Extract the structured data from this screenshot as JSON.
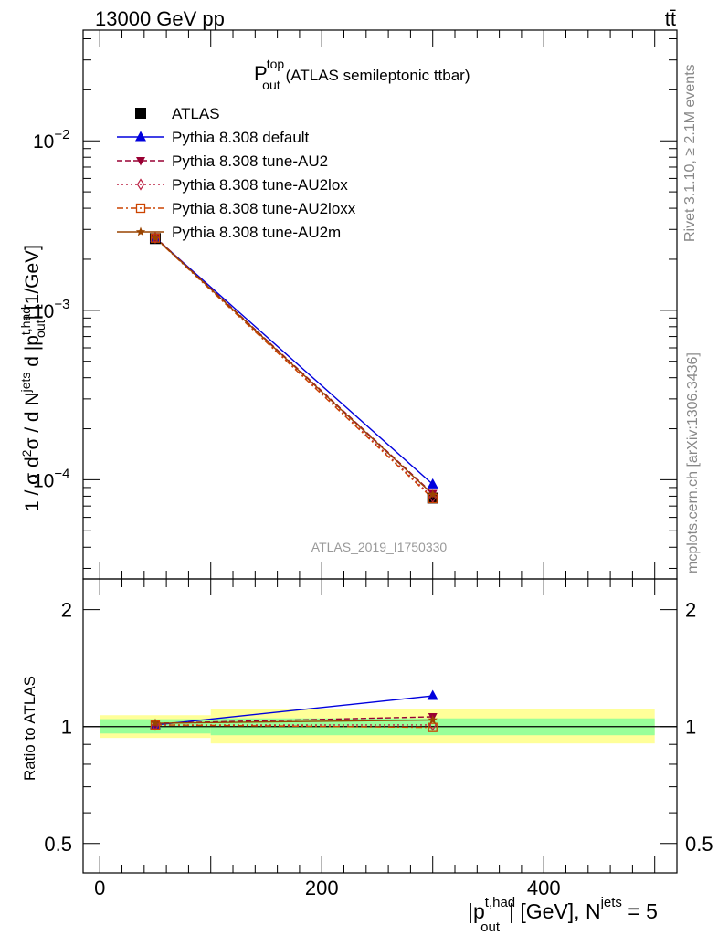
{
  "header": {
    "energy_label": "13000 GeV pp",
    "process_label": "tt̄"
  },
  "side_notes": {
    "rivet": "Rivet 3.1.10, ≥ 2.1M events",
    "source": "mcplots.cern.ch [arXiv:1306.3436]"
  },
  "chart_data": [
    {
      "type": "line",
      "title": "P_out^top (ATLAS semileptonic ttbar)",
      "title_main": "P",
      "title_sup": "top",
      "title_sub": "out",
      "title_rest": "(ATLAS semileptonic ttbar)",
      "analysis_label": "ATLAS_2019_I1750330",
      "ylabel": "1 / σ d²σ / d N^jets d |p_out^t,had| [1/GeV]",
      "yscale": "log",
      "ylim": [
        2.6e-05,
        0.045
      ],
      "xlim": [
        -15,
        520
      ],
      "yticks_major": [
        0.0001,
        0.001,
        0.01
      ],
      "ytick_labels": [
        {
          "base": "10",
          "exp": "−4"
        },
        {
          "base": "10",
          "exp": "−3"
        },
        {
          "base": "10",
          "exp": "−2"
        }
      ],
      "legend_position": "top-left",
      "x": [
        50,
        300
      ],
      "series": [
        {
          "name": "ATLAS",
          "marker": "square",
          "color": "#000000",
          "dash": "none",
          "values": [
            0.00265,
            7.8e-05
          ]
        },
        {
          "name": "Pythia 8.308 default",
          "marker": "triangle-up",
          "color": "#0000dd",
          "dash": "solid",
          "values": [
            0.00268,
            9.4e-05
          ]
        },
        {
          "name": "Pythia 8.308 tune-AU2",
          "marker": "triangle-down",
          "color": "#990033",
          "dash": "dashed",
          "values": [
            0.0027,
            8.3e-05
          ]
        },
        {
          "name": "Pythia 8.308 tune-AU2lox",
          "marker": "diamond-open",
          "color": "#bb2244",
          "dash": "dotted",
          "values": [
            0.00268,
            7.9e-05
          ]
        },
        {
          "name": "Pythia 8.308 tune-AU2loxx",
          "marker": "square-open",
          "color": "#cc4400",
          "dash": "dashdot",
          "values": [
            0.00267,
            7.75e-05
          ]
        },
        {
          "name": "Pythia 8.308 tune-AU2m",
          "marker": "star",
          "color": "#994400",
          "dash": "solid",
          "values": [
            0.00268,
            8.2e-05
          ]
        }
      ]
    },
    {
      "type": "line",
      "ylabel": "Ratio to ATLAS",
      "xlabel": "|p_out^t,had| [GeV], N^jets = 5",
      "xlabel_main": "|p",
      "xlabel_sup": "t,had",
      "xlabel_sub": "out",
      "xlabel_mid": "| [GeV], N",
      "xlabel_sup2": "jets",
      "xlabel_end": " = 5",
      "yscale": "log",
      "ylim": [
        0.42,
        2.4
      ],
      "xlim": [
        -15,
        520
      ],
      "yticks_labeled": [
        0.5,
        1,
        2
      ],
      "ytick_labels": [
        "0.5",
        "1",
        "2"
      ],
      "xticks_labeled": [
        0,
        200,
        400
      ],
      "xtick_labels": [
        "0",
        "200",
        "400"
      ],
      "reference_line": 1,
      "bands": [
        {
          "x_range": [
            0,
            100
          ],
          "stat": [
            0.96,
            1.045
          ],
          "total": [
            0.935,
            1.07
          ]
        },
        {
          "x_range": [
            100,
            500
          ],
          "stat": [
            0.95,
            1.05
          ],
          "total": [
            0.905,
            1.11
          ]
        }
      ],
      "x": [
        50,
        300
      ],
      "series": [
        {
          "name": "Pythia 8.308 default",
          "marker": "triangle-up",
          "color": "#0000dd",
          "dash": "solid",
          "values": [
            1.01,
            1.2
          ]
        },
        {
          "name": "Pythia 8.308 tune-AU2",
          "marker": "triangle-down",
          "color": "#990033",
          "dash": "dashed",
          "values": [
            1.02,
            1.06
          ]
        },
        {
          "name": "Pythia 8.308 tune-AU2lox",
          "marker": "diamond-open",
          "color": "#bb2244",
          "dash": "dotted",
          "values": [
            1.01,
            1.01
          ]
        },
        {
          "name": "Pythia 8.308 tune-AU2loxx",
          "marker": "square-open",
          "color": "#cc4400",
          "dash": "dashdot",
          "values": [
            1.01,
            0.995
          ]
        },
        {
          "name": "Pythia 8.308 tune-AU2m",
          "marker": "star",
          "color": "#994400",
          "dash": "solid",
          "values": [
            1.02,
            1.04
          ]
        }
      ]
    }
  ]
}
